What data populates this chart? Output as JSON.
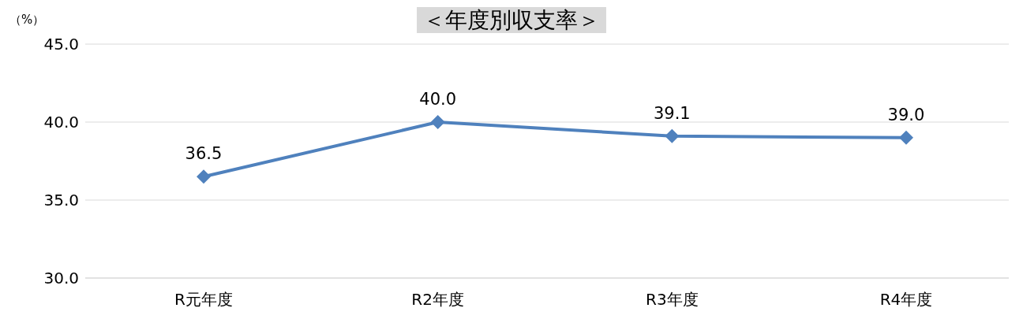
{
  "chart_data": {
    "type": "line",
    "title": "＜年度別収支率＞",
    "ylabel": "（%）",
    "categories": [
      "R元年度",
      "R2年度",
      "R3年度",
      "R4年度"
    ],
    "series": [
      {
        "color": "#4f81bd",
        "values": [
          36.5,
          40.0,
          39.1,
          39.0
        ],
        "value_labels": [
          "36.5",
          "40.0",
          "39.1",
          "39.0"
        ]
      }
    ],
    "ylim": [
      30,
      45
    ],
    "yticks": [
      {
        "value": 30,
        "label": "30.0"
      },
      {
        "value": 35,
        "label": "35.0"
      },
      {
        "value": 40,
        "label": "40.0"
      },
      {
        "value": 45,
        "label": "45.0"
      }
    ],
    "grid": "y",
    "legend": false,
    "marker": "diamond",
    "line_style": "solid"
  }
}
